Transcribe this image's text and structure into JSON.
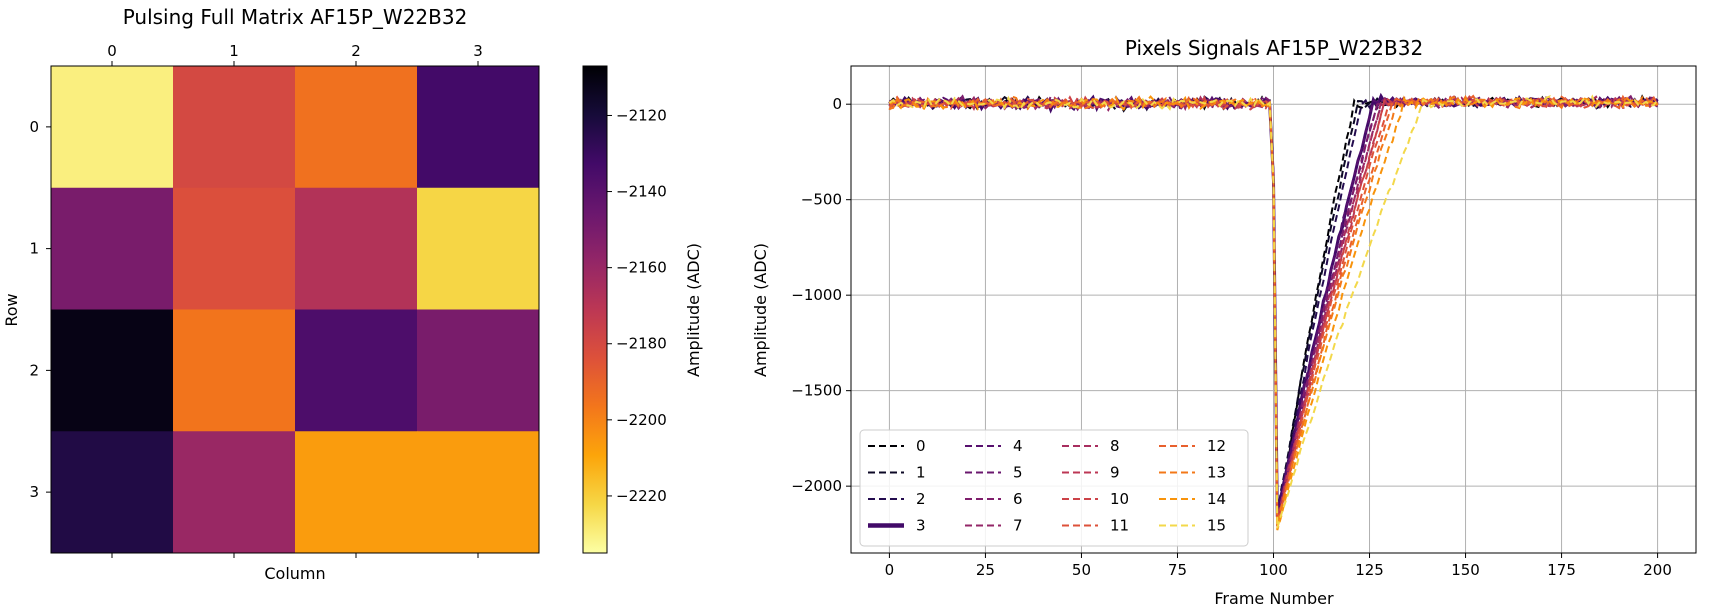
{
  "chart_data": [
    {
      "type": "heatmap",
      "title": "Pulsing Full Matrix AF15P_W22B32",
      "xlabel": "Column",
      "ylabel": "Row",
      "columns": [
        "0",
        "1",
        "2",
        "3"
      ],
      "rows": [
        "0",
        "1",
        "2",
        "3"
      ],
      "values": [
        [
          -2230,
          -2180,
          -2195,
          -2133
        ],
        [
          -2150,
          -2183,
          -2168,
          -2222
        ],
        [
          -2111,
          -2196,
          -2136,
          -2150
        ],
        [
          -2123,
          -2160,
          -2207,
          -2207
        ]
      ],
      "colorbar": {
        "label": "Amplitude (ADC)",
        "range": [
          -2235,
          -2107
        ],
        "ticks": [
          -2120,
          -2140,
          -2160,
          -2180,
          -2200,
          -2220
        ],
        "tick_labels": [
          "−2120",
          "−2140",
          "−2160",
          "−2180",
          "−2200",
          "−2220"
        ],
        "colormap": "inferno"
      },
      "x_tick_position": "top"
    },
    {
      "type": "line",
      "title": "Pixels Signals AF15P_W22B32",
      "xlabel": "Frame Number",
      "ylabel": "Amplitude (ADC)",
      "xlim": [
        -10,
        210
      ],
      "ylim": [
        -2350,
        200
      ],
      "xticks": [
        0,
        25,
        50,
        75,
        100,
        125,
        150,
        175,
        200
      ],
      "xtick_labels": [
        "0",
        "25",
        "50",
        "75",
        "100",
        "125",
        "150",
        "175",
        "200"
      ],
      "yticks": [
        0,
        -500,
        -1000,
        -1500,
        -2000
      ],
      "ytick_labels": [
        "0",
        "−500",
        "−1000",
        "−1500",
        "−2000"
      ],
      "grid": true,
      "legend": {
        "placement": "lower-left",
        "columns": 4
      },
      "series": [
        {
          "name": "0",
          "color": "#000004",
          "style": "dashed",
          "min": -2200,
          "recovery": 20
        },
        {
          "name": "1",
          "color": "#0c0826",
          "style": "dashed",
          "min": -2150,
          "recovery": 21
        },
        {
          "name": "2",
          "color": "#240c4f",
          "style": "dashed",
          "min": -2180,
          "recovery": 22
        },
        {
          "name": "3",
          "color": "#420a68",
          "style": "solid",
          "min": -2160,
          "recovery": 25
        },
        {
          "name": "4",
          "color": "#57106e",
          "style": "dashed",
          "min": -2170,
          "recovery": 25
        },
        {
          "name": "5",
          "color": "#6a176e",
          "style": "dashed",
          "min": -2190,
          "recovery": 26
        },
        {
          "name": "6",
          "color": "#7f1e6c",
          "style": "dashed",
          "min": -2175,
          "recovery": 26
        },
        {
          "name": "7",
          "color": "#932667",
          "style": "dashed",
          "min": -2200,
          "recovery": 27
        },
        {
          "name": "8",
          "color": "#a82e5f",
          "style": "dashed",
          "min": -2180,
          "recovery": 27
        },
        {
          "name": "9",
          "color": "#bc3754",
          "style": "dashed",
          "min": -2210,
          "recovery": 28
        },
        {
          "name": "10",
          "color": "#cc4248",
          "style": "dashed",
          "min": -2190,
          "recovery": 28
        },
        {
          "name": "11",
          "color": "#dd513a",
          "style": "dashed",
          "min": -2200,
          "recovery": 29
        },
        {
          "name": "12",
          "color": "#e8602d",
          "style": "dashed",
          "min": -2215,
          "recovery": 30
        },
        {
          "name": "13",
          "color": "#f37819",
          "style": "dashed",
          "min": -2205,
          "recovery": 31
        },
        {
          "name": "14",
          "color": "#f8930b",
          "style": "dashed",
          "min": -2230,
          "recovery": 33
        },
        {
          "name": "15",
          "color": "#f3d84a",
          "style": "dashed",
          "min": -2220,
          "recovery": 38
        }
      ],
      "pulse_frame": 100,
      "frames": [
        0,
        200
      ]
    }
  ]
}
